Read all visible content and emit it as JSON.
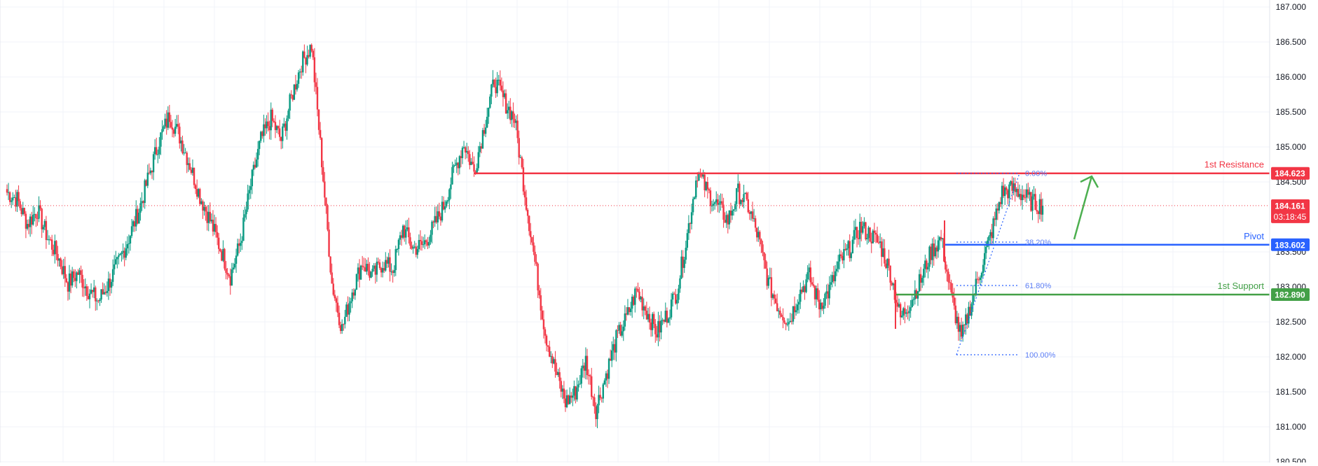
{
  "chart_data": {
    "type": "candlestick",
    "ylim": [
      180.3,
      187.0
    ],
    "y_ticks": [
      {
        "value": 187.0,
        "label": "187.000"
      },
      {
        "value": 186.5,
        "label": "186.500"
      },
      {
        "value": 186.0,
        "label": "186.000"
      },
      {
        "value": 185.5,
        "label": "185.500"
      },
      {
        "value": 185.0,
        "label": "185.000"
      },
      {
        "value": 184.5,
        "label": "184.500"
      },
      {
        "value": 183.5,
        "label": "183.500"
      },
      {
        "value": 183.0,
        "label": "183.000"
      },
      {
        "value": 182.5,
        "label": "182.500"
      },
      {
        "value": 182.0,
        "label": "182.000"
      },
      {
        "value": 181.5,
        "label": "181.500"
      },
      {
        "value": 181.0,
        "label": "181.000"
      },
      {
        "value": 180.5,
        "label": "180.500"
      }
    ],
    "grid": true,
    "price_path": [
      184.35,
      184.25,
      183.9,
      184.1,
      183.7,
      183.45,
      183.05,
      183.2,
      182.95,
      182.8,
      183.05,
      183.35,
      183.7,
      184.1,
      184.6,
      185.1,
      185.45,
      185.15,
      184.75,
      184.3,
      183.95,
      183.55,
      183.15,
      183.65,
      184.45,
      185.1,
      185.4,
      185.1,
      185.7,
      186.2,
      186.45,
      184.8,
      183.05,
      182.4,
      182.95,
      183.35,
      183.15,
      183.35,
      183.25,
      183.85,
      183.55,
      183.6,
      183.85,
      184.15,
      184.65,
      185.05,
      184.65,
      185.3,
      185.95,
      185.65,
      185.4,
      184.35,
      183.35,
      182.35,
      181.8,
      181.35,
      181.5,
      181.95,
      181.25,
      181.75,
      182.25,
      182.55,
      182.95,
      182.65,
      182.35,
      182.6,
      182.95,
      183.75,
      184.65,
      184.35,
      184.15,
      183.95,
      184.35,
      184.15,
      183.7,
      183.05,
      182.7,
      182.5,
      182.9,
      183.15,
      182.75,
      182.95,
      183.35,
      183.55,
      183.85,
      183.75,
      183.6,
      183.2,
      182.55,
      182.8,
      183.1,
      183.5,
      183.7,
      182.85,
      182.25,
      182.8,
      183.3,
      183.8,
      184.35,
      184.4,
      184.32,
      184.2,
      184.16
    ],
    "lines": [
      {
        "name": "1st Resistance",
        "value": 184.623,
        "label": "184.623",
        "color": "#f23645"
      },
      {
        "name": "Pivot",
        "value": 183.602,
        "label": "183.602",
        "color": "#2962ff"
      },
      {
        "name": "1st Support",
        "value": 182.89,
        "label": "182.890",
        "color": "#43a047"
      }
    ],
    "fibonacci": [
      {
        "level": "0.00%",
        "value": 184.623
      },
      {
        "level": "38.20%",
        "value": 183.64
      },
      {
        "level": "61.80%",
        "value": 183.02
      },
      {
        "level": "100.00%",
        "value": 182.03
      }
    ],
    "current_price": {
      "label": "184.161",
      "countdown": "03:18:45",
      "value": 184.161,
      "color": "#f23645"
    }
  },
  "colors": {
    "up": "#089981",
    "down": "#f23645",
    "grid": "#f0f3fa",
    "axis_text": "#131722"
  }
}
